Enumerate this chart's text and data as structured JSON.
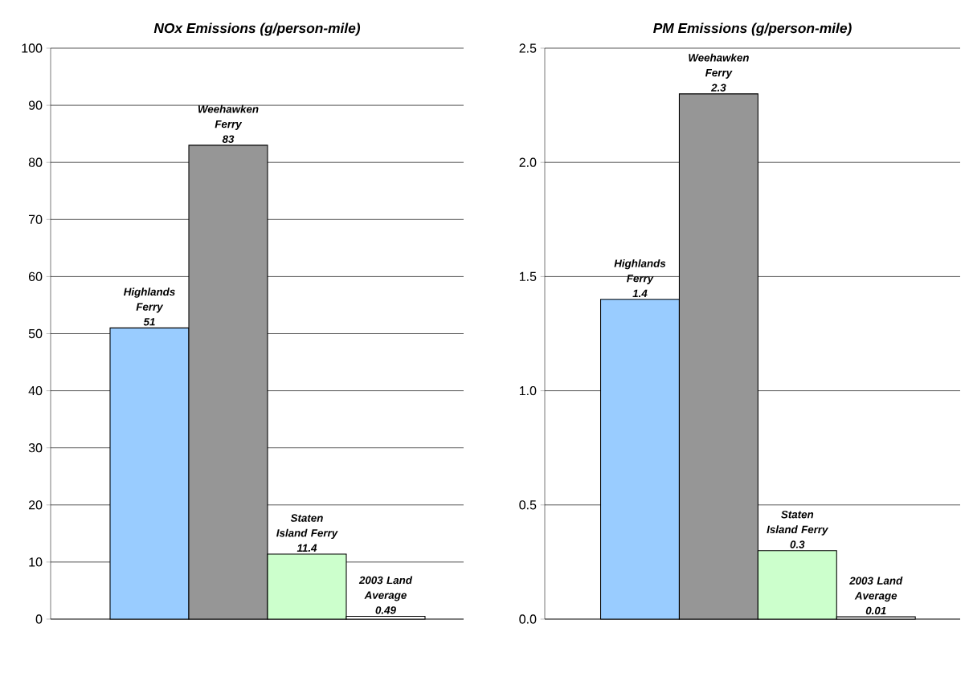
{
  "chart_data": [
    {
      "type": "bar",
      "title": "NOx Emissions (g/person-mile)",
      "categories": [
        "Highlands Ferry",
        "Weehawken Ferry",
        "Staten Island Ferry",
        "2003 Land Average"
      ],
      "values": [
        51,
        83,
        11.4,
        0.49
      ],
      "value_labels": [
        "51",
        "83",
        "11.4",
        "0.49"
      ],
      "colors": [
        "#99ccff",
        "#969696",
        "#ccffcc",
        "#ffffff"
      ],
      "ylim": [
        0,
        100
      ],
      "yticks": [
        0,
        10,
        20,
        30,
        40,
        50,
        60,
        70,
        80,
        90,
        100
      ],
      "grid": "y"
    },
    {
      "type": "bar",
      "title": "PM Emissions (g/person-mile)",
      "categories": [
        "Highlands Ferry",
        "Weehawken Ferry",
        "Staten Island Ferry",
        "2003 Land Average"
      ],
      "values": [
        1.4,
        2.3,
        0.3,
        0.01
      ],
      "value_labels": [
        "1.4",
        "2.3",
        "0.3",
        "0.01"
      ],
      "colors": [
        "#99ccff",
        "#969696",
        "#ccffcc",
        "#ffffff"
      ],
      "ylim": [
        0,
        2.5
      ],
      "yticks": [
        {
          "value": 0,
          "label": "0.0"
        },
        {
          "value": 0.5,
          "label": "0.5"
        },
        {
          "value": 1,
          "label": "1.0"
        },
        1.5,
        {
          "value": 2,
          "label": "2.0"
        },
        2.5
      ],
      "grid": "y"
    }
  ]
}
